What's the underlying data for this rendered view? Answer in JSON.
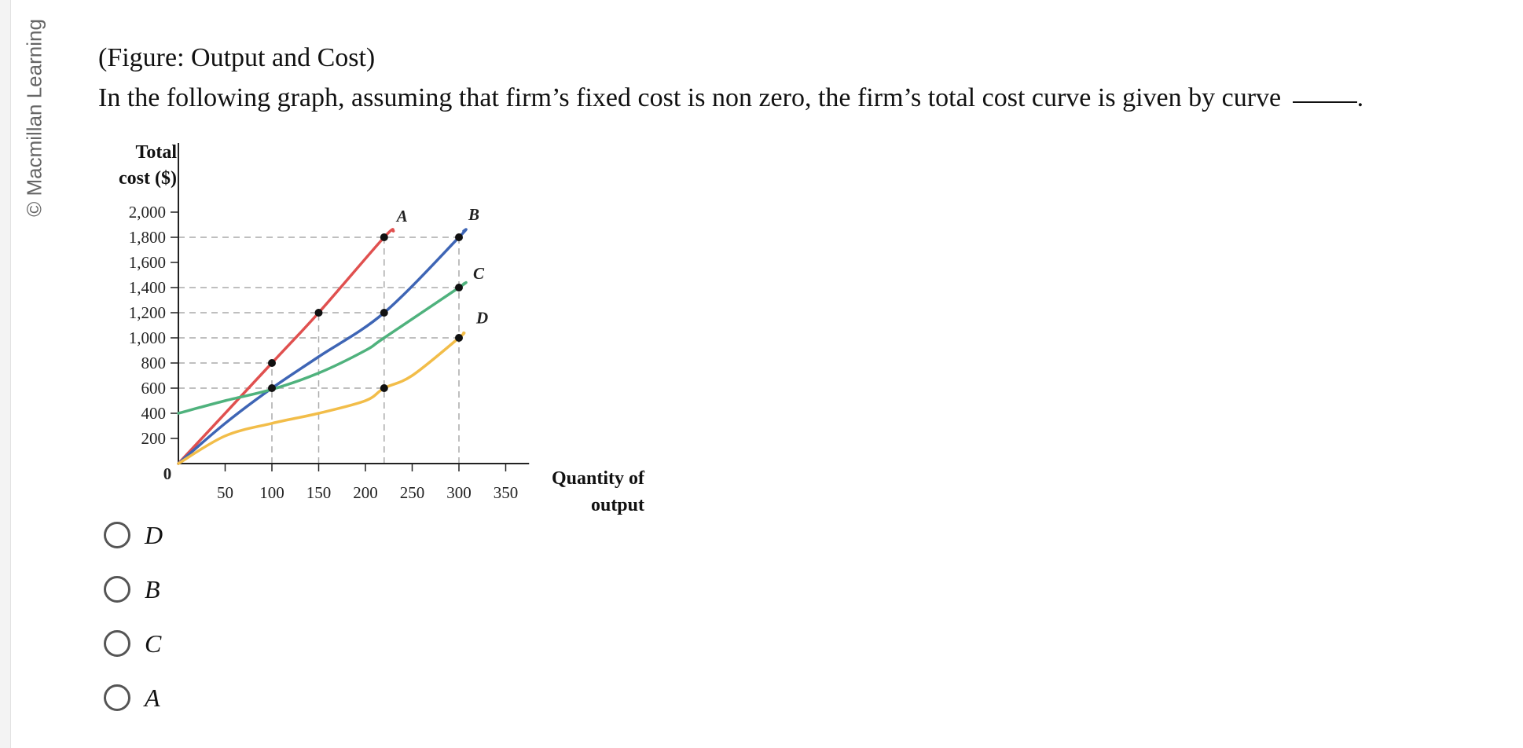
{
  "credit": "© Macmillan Learning",
  "figure_title": "(Figure: Output and Cost)",
  "question": "In the following graph, assuming that firm’s fixed cost is non zero, the firm’s total cost curve is given by curve",
  "question_end": ".",
  "options": [
    {
      "label": "D"
    },
    {
      "label": "B"
    },
    {
      "label": "C"
    },
    {
      "label": "A"
    }
  ],
  "chart_data": {
    "type": "line",
    "ylabel_line1": "Total",
    "ylabel_line2": "cost ($)",
    "xlabel_line1": "Quantity of",
    "xlabel_line2": "output",
    "origin_label": "0",
    "x_ticks": [
      50,
      100,
      150,
      200,
      250,
      300,
      350
    ],
    "y_ticks": [
      200,
      400,
      600,
      800,
      1000,
      1200,
      1400,
      1600,
      1800,
      2000
    ],
    "y_tick_labels": [
      "200",
      "400",
      "600",
      "800",
      "1,000",
      "1,200",
      "1,400",
      "1,600",
      "1,800",
      "2,000"
    ],
    "xlim": [
      0,
      375
    ],
    "ylim": [
      0,
      2100
    ],
    "series": [
      {
        "name": "A",
        "color": "#e0504f",
        "x": [
          0,
          100,
          150,
          220,
          230
        ],
        "y": [
          0,
          800,
          1200,
          1800,
          1850
        ]
      },
      {
        "name": "B",
        "color": "#3e65b5",
        "x": [
          0,
          50,
          100,
          150,
          220,
          300,
          305
        ],
        "y": [
          0,
          320,
          600,
          850,
          1200,
          1800,
          1850
        ]
      },
      {
        "name": "C",
        "color": "#4fb27d",
        "x": [
          0,
          50,
          100,
          150,
          200,
          220,
          300,
          305
        ],
        "y": [
          400,
          500,
          590,
          720,
          900,
          1000,
          1400,
          1430
        ]
      },
      {
        "name": "D",
        "color": "#f2bd49",
        "x": [
          0,
          50,
          100,
          150,
          200,
          220,
          250,
          300,
          305
        ],
        "y": [
          0,
          220,
          320,
          400,
          500,
          600,
          700,
          1000,
          1040
        ]
      }
    ],
    "marked_points": [
      {
        "x": 100,
        "y": 800
      },
      {
        "x": 100,
        "y": 600
      },
      {
        "x": 150,
        "y": 1200
      },
      {
        "x": 220,
        "y": 1800
      },
      {
        "x": 220,
        "y": 1200
      },
      {
        "x": 220,
        "y": 600
      },
      {
        "x": 300,
        "y": 1800
      },
      {
        "x": 300,
        "y": 1400
      },
      {
        "x": 300,
        "y": 1000
      }
    ],
    "guide_lines": [
      {
        "y": 1800,
        "x_end": 300
      },
      {
        "y": 1400,
        "x_end": 300
      },
      {
        "y": 1200,
        "x_end": 220
      },
      {
        "y": 1000,
        "x_end": 300
      },
      {
        "y": 800,
        "x_end": 100
      },
      {
        "y": 600,
        "x_end": 220
      },
      {
        "x": 100,
        "y_end": 800
      },
      {
        "x": 150,
        "y_end": 1200
      },
      {
        "x": 220,
        "y_end": 1800
      },
      {
        "x": 300,
        "y_end": 1800
      }
    ],
    "grid": false,
    "legend": "curve labels at line ends"
  }
}
